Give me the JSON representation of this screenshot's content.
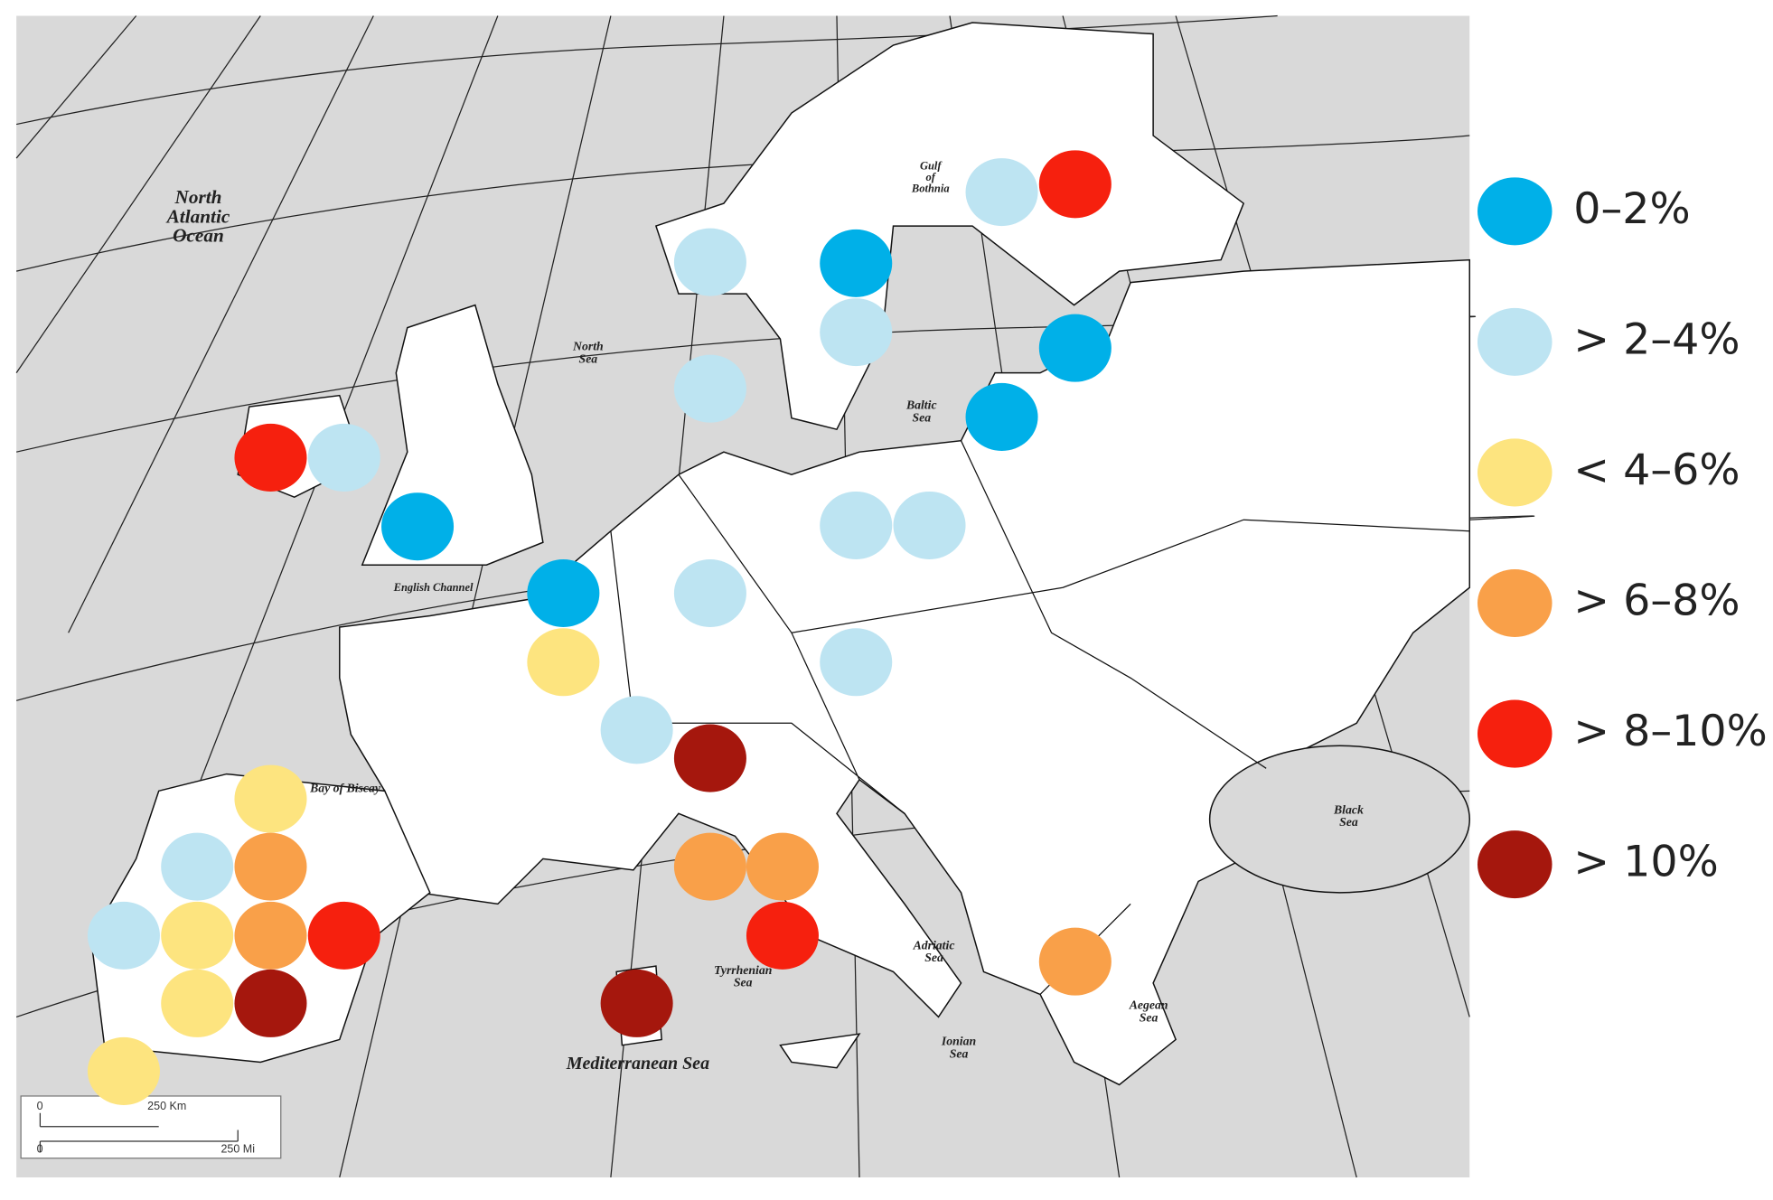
{
  "map": {
    "sea_labels": [
      {
        "lines": [
          "North",
          "Atlantic",
          "Ocean"
        ]
      },
      {
        "lines": [
          "North",
          "Sea"
        ]
      },
      {
        "lines": [
          "Gulf",
          "of",
          "Bothnia"
        ]
      },
      {
        "lines": [
          "Baltic",
          "Sea"
        ]
      },
      {
        "lines": [
          "English Channel"
        ]
      },
      {
        "lines": [
          "Bay of Biscay"
        ]
      },
      {
        "lines": [
          "Black",
          "Sea"
        ]
      },
      {
        "lines": [
          "Adriatic",
          "Sea"
        ]
      },
      {
        "lines": [
          "Tyrrhenian",
          "Sea"
        ]
      },
      {
        "lines": [
          "Ionian",
          "Sea"
        ]
      },
      {
        "lines": [
          "Aegean",
          "Sea"
        ]
      },
      {
        "lines": [
          "Mediterranean Sea"
        ]
      }
    ],
    "scale_bar": [
      "0",
      "250 Km",
      "0",
      "250 Mi"
    ],
    "legend": [
      {
        "label": "0–2%",
        "color": "#00b0e8"
      },
      {
        "label": "> 2–4%",
        "color": "#bde4f2"
      },
      {
        "label": "< 4–6%",
        "color": "#fde47f"
      },
      {
        "label": "> 6–8%",
        "color": "#f9a049"
      },
      {
        "label": "> 8–10%",
        "color": "#f6200e"
      },
      {
        "label": "> 10%",
        "color": "#a5170d"
      }
    ]
  }
}
